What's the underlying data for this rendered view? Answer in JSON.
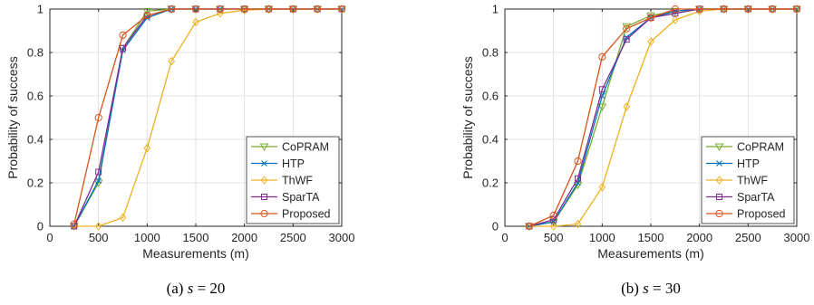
{
  "chart_data": [
    {
      "type": "line",
      "caption": {
        "label": "(a)",
        "var": "s",
        "eq": "= 20"
      },
      "xlabel": "Measurements (m)",
      "ylabel": "Probability of success",
      "xlim": [
        0,
        3000
      ],
      "ylim": [
        0,
        1
      ],
      "xticks": [
        0,
        500,
        1000,
        1500,
        2000,
        2500,
        3000
      ],
      "yticks": [
        0,
        0.2,
        0.4,
        0.6,
        0.8,
        1
      ],
      "xtick_labels": [
        "0",
        "500",
        "1000",
        "1500",
        "2000",
        "2500",
        "3000"
      ],
      "ytick_labels": [
        "0",
        "0.2",
        "0.4",
        "0.6",
        "0.8",
        "1"
      ],
      "grid": true,
      "legend_position": "bottom-right",
      "x": [
        250,
        500,
        750,
        1000,
        1250,
        1500,
        1750,
        2000,
        2250,
        2500,
        2750,
        3000
      ],
      "series": [
        {
          "name": "CoPRAM",
          "color": "#77AC30",
          "marker": "triangle-down",
          "values": [
            0,
            0.2,
            0.82,
            0.99,
            1,
            1,
            1,
            1,
            1,
            1,
            1,
            1
          ]
        },
        {
          "name": "HTP",
          "color": "#0072BD",
          "marker": "x",
          "values": [
            0,
            0.21,
            0.81,
            0.96,
            1,
            1,
            1,
            1,
            1,
            1,
            1,
            1
          ]
        },
        {
          "name": "ThWF",
          "color": "#EDB120",
          "marker": "diamond",
          "values": [
            0,
            0,
            0.04,
            0.36,
            0.76,
            0.94,
            0.98,
            0.995,
            1,
            1,
            1,
            1
          ]
        },
        {
          "name": "SparTA",
          "color": "#7E2F8E",
          "marker": "square",
          "values": [
            0,
            0.25,
            0.82,
            0.97,
            1,
            1,
            1,
            1,
            1,
            1,
            1,
            1
          ]
        },
        {
          "name": "Proposed",
          "color": "#D95319",
          "marker": "circle",
          "values": [
            0.01,
            0.5,
            0.88,
            0.97,
            1,
            1,
            1,
            1,
            1,
            1,
            1,
            1
          ]
        }
      ]
    },
    {
      "type": "line",
      "caption": {
        "label": "(b)",
        "var": "s",
        "eq": "= 30"
      },
      "xlabel": "Measurements (m)",
      "ylabel": "Probability of success",
      "xlim": [
        0,
        3000
      ],
      "ylim": [
        0,
        1
      ],
      "xticks": [
        0,
        500,
        1000,
        1500,
        2000,
        2500,
        3000
      ],
      "yticks": [
        0,
        0.2,
        0.4,
        0.6,
        0.8,
        1
      ],
      "xtick_labels": [
        "0",
        "500",
        "1000",
        "1500",
        "2000",
        "2500",
        "3000"
      ],
      "ytick_labels": [
        "0",
        "0.2",
        "0.4",
        "0.6",
        "0.8",
        "1"
      ],
      "grid": true,
      "legend_position": "bottom-right",
      "x": [
        250,
        500,
        750,
        1000,
        1250,
        1500,
        1750,
        2000,
        2250,
        2500,
        2750,
        3000
      ],
      "series": [
        {
          "name": "CoPRAM",
          "color": "#77AC30",
          "marker": "triangle-down",
          "values": [
            0,
            0.02,
            0.19,
            0.55,
            0.92,
            0.97,
            0.99,
            1,
            1,
            1,
            1,
            1
          ]
        },
        {
          "name": "HTP",
          "color": "#0072BD",
          "marker": "x",
          "values": [
            0,
            0.02,
            0.2,
            0.6,
            0.87,
            0.96,
            0.99,
            1,
            1,
            1,
            1,
            1
          ]
        },
        {
          "name": "ThWF",
          "color": "#EDB120",
          "marker": "diamond",
          "values": [
            0,
            0,
            0.01,
            0.18,
            0.55,
            0.85,
            0.95,
            0.99,
            1,
            1,
            1,
            1
          ]
        },
        {
          "name": "SparTA",
          "color": "#7E2F8E",
          "marker": "square",
          "values": [
            0,
            0.03,
            0.22,
            0.63,
            0.86,
            0.96,
            0.98,
            1,
            1,
            1,
            1,
            1
          ]
        },
        {
          "name": "Proposed",
          "color": "#D95319",
          "marker": "circle",
          "values": [
            0,
            0.05,
            0.3,
            0.78,
            0.91,
            0.96,
            1,
            1,
            1,
            1,
            1,
            1
          ]
        }
      ]
    }
  ]
}
